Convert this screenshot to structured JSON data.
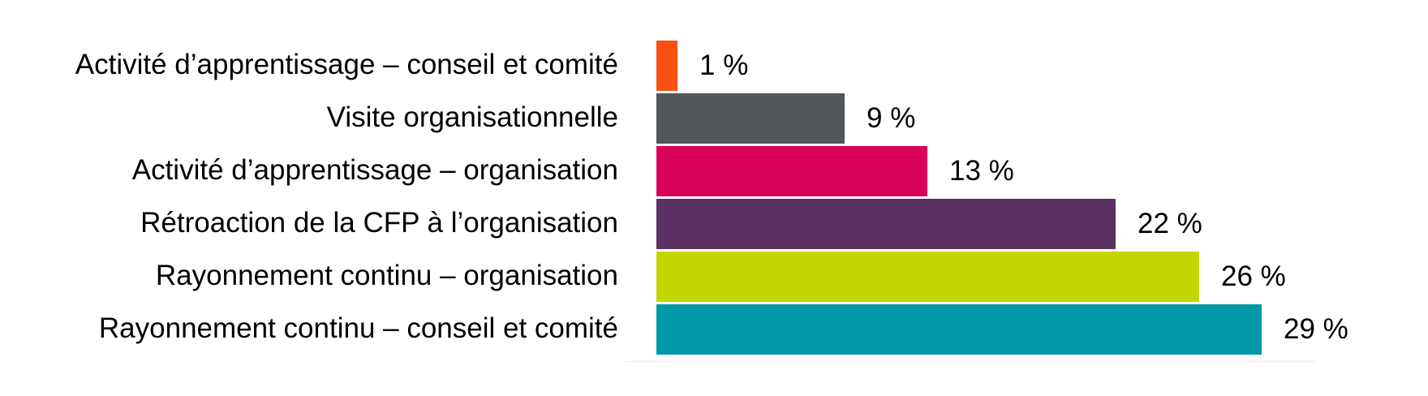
{
  "chart_data": {
    "type": "bar",
    "orientation": "horizontal",
    "categories": [
      "Activité d’apprentissage – conseil et comité",
      "Visite organisationnelle",
      "Activité d’apprentissage – organisation",
      "Rétroaction de la CFP à l’organisation",
      "Rayonnement continu – organisation",
      "Rayonnement continu – conseil et comité"
    ],
    "values": [
      1,
      9,
      13,
      22,
      26,
      29
    ],
    "value_labels": [
      "1 %",
      "9 %",
      "13 %",
      "22 %",
      "26 %",
      "29 %"
    ],
    "bar_colors": [
      "#FA4F12",
      "#53565A",
      "#D9005C",
      "#5A3162",
      "#C3D600",
      "#0098A6"
    ],
    "xlim": [
      0,
      29
    ],
    "grid": false,
    "legend": false,
    "value_label_position": "outside-end",
    "text_color": "#000000",
    "background_color": "#FFFFFF",
    "baseline_color": "#E9E9E9"
  }
}
